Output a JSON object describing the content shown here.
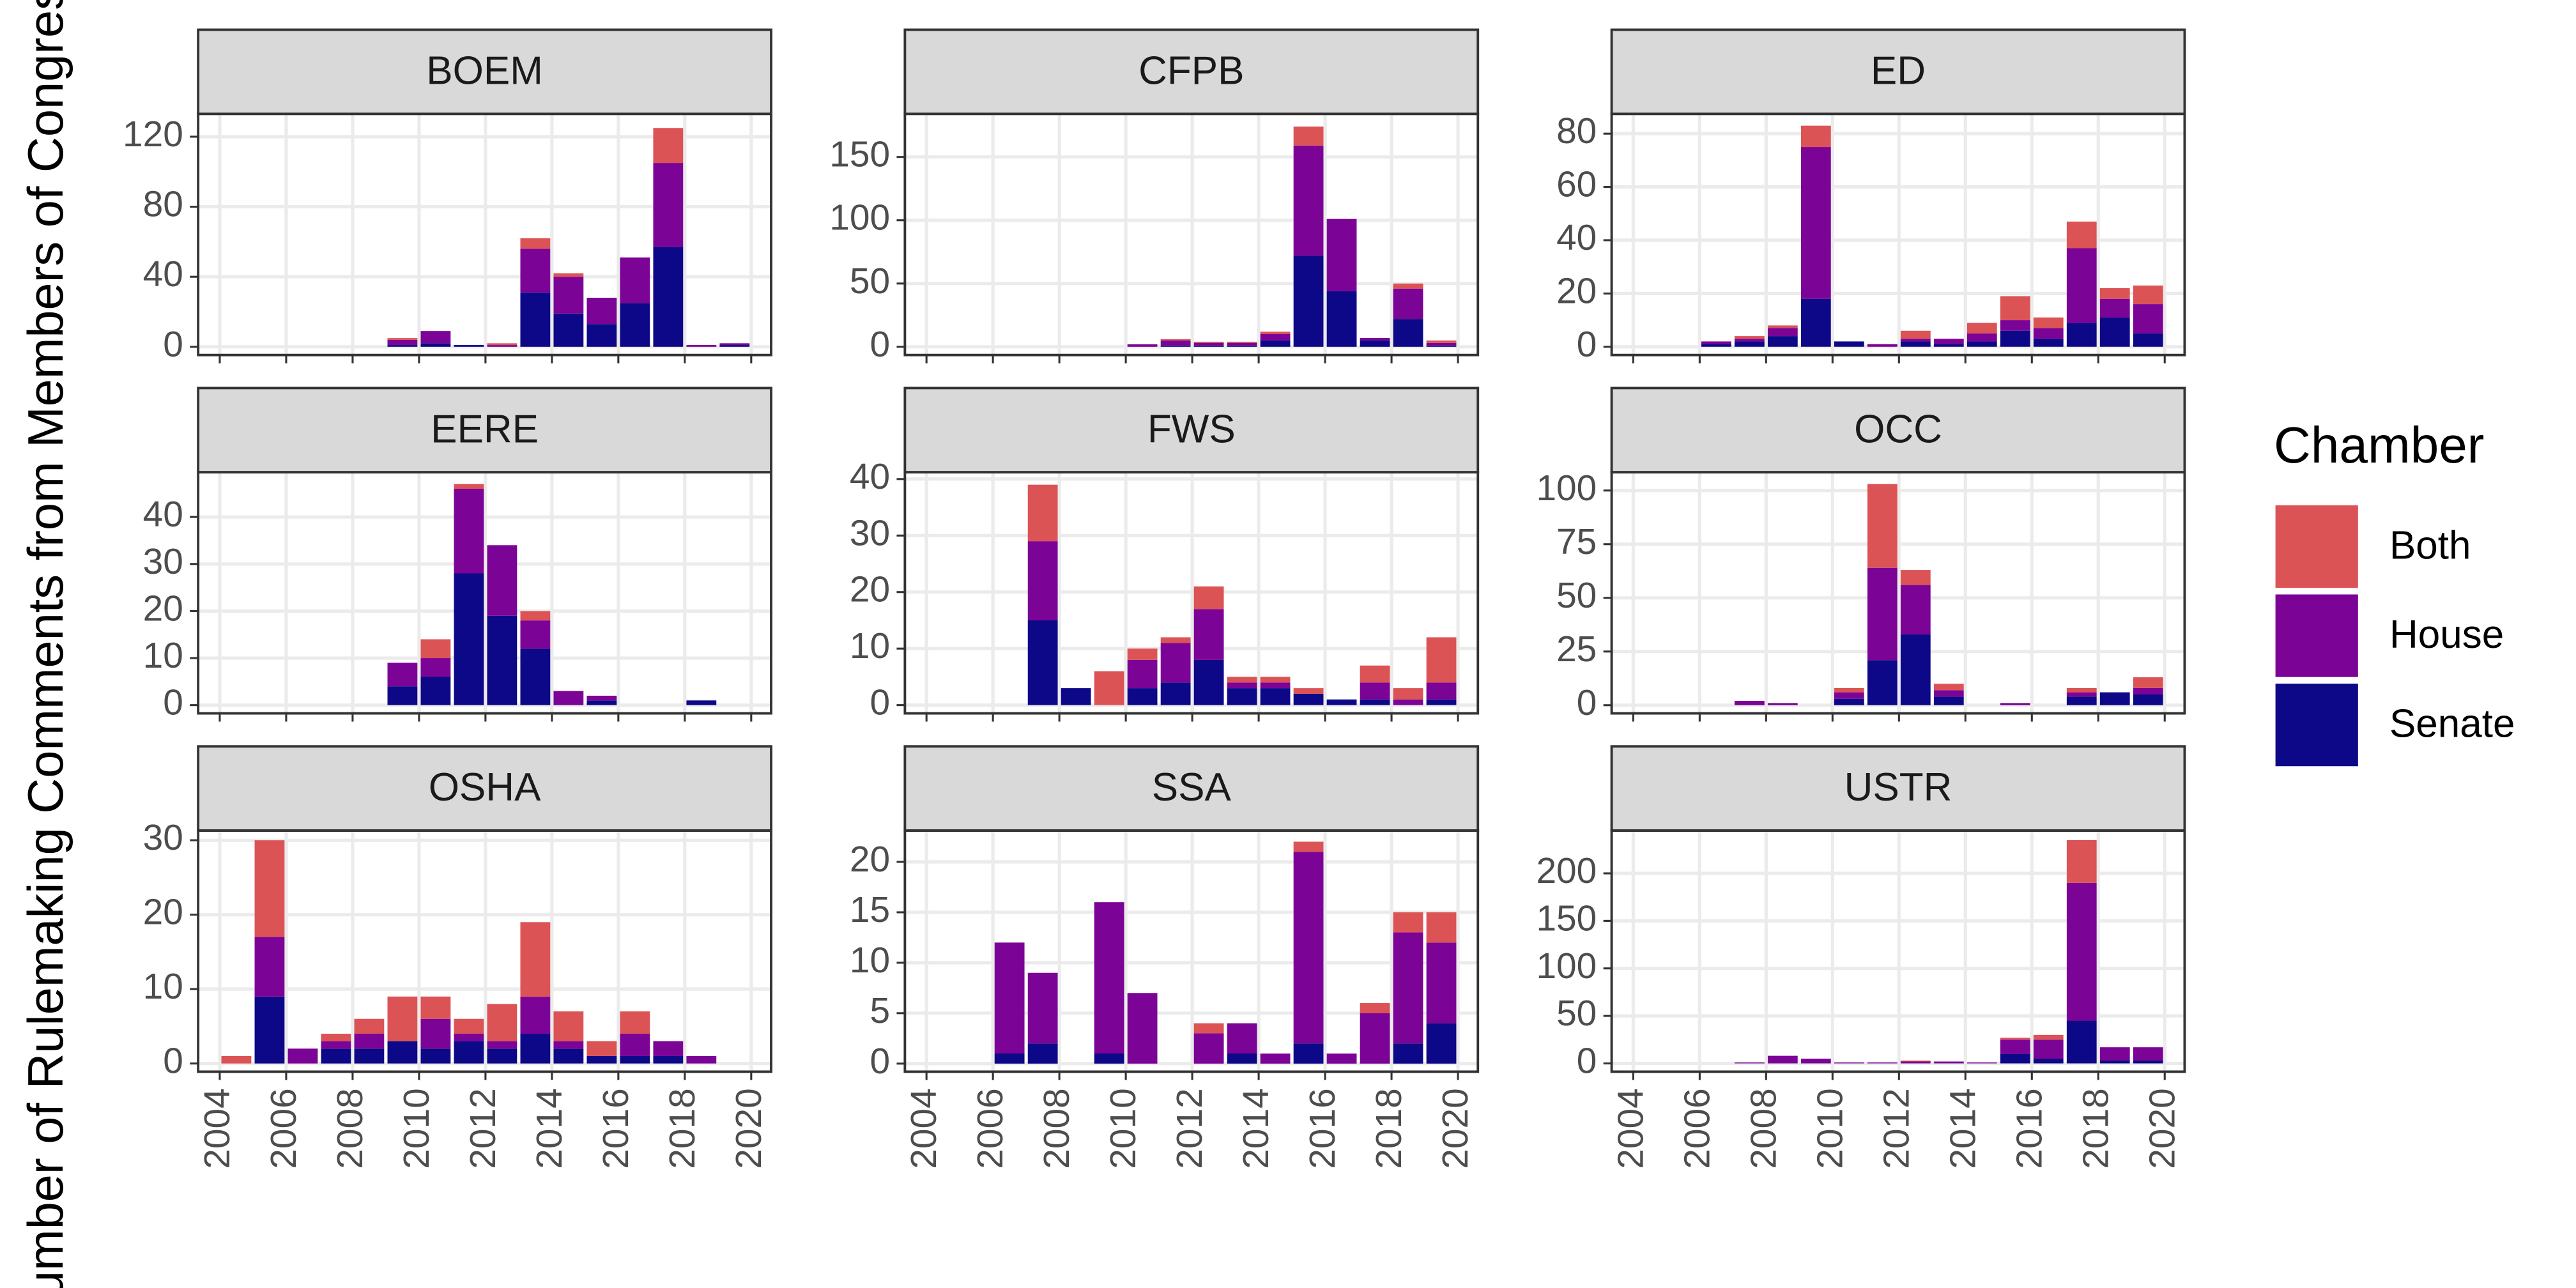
{
  "y_label": "Number of Rulemaking Comments from Members of Congress",
  "legend": {
    "title": "Chamber",
    "position": "right"
  },
  "chart_data": [
    {
      "type": "bar",
      "stacked": true,
      "title": "BOEM",
      "grid": true,
      "x": [
        2009,
        2010,
        2011,
        2012,
        2013,
        2014,
        2015,
        2016,
        2017,
        2018,
        2019
      ],
      "xlim": [
        2003.35,
        2020.6
      ],
      "xticks": [
        2004,
        2006,
        2008,
        2010,
        2012,
        2014,
        2016,
        2018,
        2020
      ],
      "ylim": [
        -4.7,
        133
      ],
      "yticks": [
        0,
        40,
        80,
        120
      ],
      "series": [
        {
          "name": "Senate",
          "color": "#0d0887",
          "values": [
            1,
            2,
            1,
            0,
            31,
            19,
            13,
            25,
            57,
            0,
            1
          ]
        },
        {
          "name": "House",
          "color": "#7b0396",
          "values": [
            3,
            7,
            0,
            1,
            25,
            21,
            15,
            26,
            48,
            1,
            1
          ]
        },
        {
          "name": "Both",
          "color": "#dc5356",
          "values": [
            1,
            0,
            0,
            1,
            6,
            2,
            0,
            0,
            20,
            0,
            0
          ]
        }
      ]
    },
    {
      "type": "bar",
      "stacked": true,
      "title": "CFPB",
      "grid": true,
      "x": [
        2010,
        2011,
        2012,
        2013,
        2014,
        2015,
        2016,
        2017,
        2018,
        2019
      ],
      "xlim": [
        2003.35,
        2020.6
      ],
      "xticks": [
        2004,
        2006,
        2008,
        2010,
        2012,
        2014,
        2016,
        2018,
        2020
      ],
      "ylim": [
        -6.5,
        184
      ],
      "yticks": [
        0,
        50,
        100,
        150
      ],
      "series": [
        {
          "name": "Senate",
          "color": "#0d0887",
          "values": [
            0,
            1,
            1,
            1,
            5,
            72,
            44,
            5,
            22,
            1
          ]
        },
        {
          "name": "House",
          "color": "#7b0396",
          "values": [
            2,
            4,
            2,
            2,
            5,
            87,
            57,
            2,
            24,
            2
          ]
        },
        {
          "name": "Both",
          "color": "#dc5356",
          "values": [
            0,
            1,
            1,
            1,
            2,
            15,
            0,
            0,
            4,
            2
          ]
        }
      ]
    },
    {
      "type": "bar",
      "stacked": true,
      "title": "ED",
      "grid": true,
      "x": [
        2006,
        2007,
        2008,
        2009,
        2010,
        2011,
        2012,
        2013,
        2014,
        2015,
        2016,
        2017,
        2018,
        2019
      ],
      "xlim": [
        2003.35,
        2020.6
      ],
      "xticks": [
        2004,
        2006,
        2008,
        2010,
        2012,
        2014,
        2016,
        2018,
        2020
      ],
      "ylim": [
        -3.1,
        87.4
      ],
      "yticks": [
        0,
        20,
        40,
        60,
        80
      ],
      "series": [
        {
          "name": "Senate",
          "color": "#0d0887",
          "values": [
            1,
            2,
            4,
            18,
            2,
            0,
            2,
            1,
            2,
            6,
            3,
            9,
            11,
            5
          ]
        },
        {
          "name": "House",
          "color": "#7b0396",
          "values": [
            1,
            1,
            3,
            57,
            0,
            1,
            1,
            2,
            3,
            4,
            4,
            28,
            7,
            11
          ]
        },
        {
          "name": "Both",
          "color": "#dc5356",
          "values": [
            0,
            1,
            1,
            8,
            0,
            0,
            3,
            0,
            4,
            9,
            4,
            10,
            4,
            7
          ]
        }
      ]
    },
    {
      "type": "bar",
      "stacked": true,
      "title": "EERE",
      "grid": true,
      "x": [
        2009,
        2010,
        2011,
        2012,
        2013,
        2014,
        2015,
        2018
      ],
      "xlim": [
        2003.35,
        2020.6
      ],
      "xticks": [
        2004,
        2006,
        2008,
        2010,
        2012,
        2014,
        2016,
        2018,
        2020
      ],
      "ylim": [
        -1.75,
        49.5
      ],
      "yticks": [
        0,
        10,
        20,
        30,
        40
      ],
      "series": [
        {
          "name": "Senate",
          "color": "#0d0887",
          "values": [
            4,
            6,
            28,
            19,
            12,
            0,
            1,
            1
          ]
        },
        {
          "name": "House",
          "color": "#7b0396",
          "values": [
            5,
            4,
            18,
            15,
            6,
            3,
            1,
            0
          ]
        },
        {
          "name": "Both",
          "color": "#dc5356",
          "values": [
            0,
            4,
            1,
            0,
            2,
            0,
            0,
            0
          ]
        }
      ]
    },
    {
      "type": "bar",
      "stacked": true,
      "title": "FWS",
      "grid": true,
      "x": [
        2007,
        2008,
        2009,
        2010,
        2011,
        2012,
        2013,
        2014,
        2015,
        2016,
        2017,
        2018,
        2019
      ],
      "xlim": [
        2003.35,
        2020.6
      ],
      "xticks": [
        2004,
        2006,
        2008,
        2010,
        2012,
        2014,
        2016,
        2018,
        2020
      ],
      "ylim": [
        -1.46,
        41.2
      ],
      "yticks": [
        0,
        10,
        20,
        30,
        40
      ],
      "series": [
        {
          "name": "Senate",
          "color": "#0d0887",
          "values": [
            15,
            3,
            0,
            3,
            4,
            8,
            3,
            3,
            2,
            1,
            1,
            0,
            1
          ]
        },
        {
          "name": "House",
          "color": "#7b0396",
          "values": [
            14,
            0,
            0,
            5,
            7,
            9,
            1,
            1,
            0,
            0,
            3,
            1,
            3
          ]
        },
        {
          "name": "Both",
          "color": "#dc5356",
          "values": [
            10,
            0,
            6,
            2,
            1,
            4,
            1,
            1,
            1,
            0,
            3,
            2,
            8
          ]
        }
      ]
    },
    {
      "type": "bar",
      "stacked": true,
      "title": "OCC",
      "grid": true,
      "x": [
        2007,
        2008,
        2010,
        2011,
        2012,
        2013,
        2015,
        2017,
        2018,
        2019
      ],
      "xlim": [
        2003.35,
        2020.6
      ],
      "xticks": [
        2004,
        2006,
        2008,
        2010,
        2012,
        2014,
        2016,
        2018,
        2020
      ],
      "ylim": [
        -3.8,
        108.5
      ],
      "yticks": [
        0,
        25,
        50,
        75,
        100
      ],
      "series": [
        {
          "name": "Senate",
          "color": "#0d0887",
          "values": [
            0,
            0,
            3,
            21,
            33,
            4,
            0,
            4,
            6,
            5
          ]
        },
        {
          "name": "House",
          "color": "#7b0396",
          "values": [
            2,
            1,
            3,
            43,
            23,
            3,
            1,
            2,
            0,
            3
          ]
        },
        {
          "name": "Both",
          "color": "#dc5356",
          "values": [
            0,
            0,
            2,
            39,
            7,
            3,
            0,
            2,
            0,
            5
          ]
        }
      ]
    },
    {
      "type": "bar",
      "stacked": true,
      "title": "OSHA",
      "grid": true,
      "x": [
        2004,
        2005,
        2006,
        2007,
        2008,
        2009,
        2010,
        2011,
        2012,
        2013,
        2014,
        2015,
        2016,
        2017,
        2018
      ],
      "xlim": [
        2003.35,
        2020.6
      ],
      "xticks": [
        2004,
        2006,
        2008,
        2010,
        2012,
        2014,
        2016,
        2018,
        2020
      ],
      "ylim": [
        -1.1,
        31.3
      ],
      "yticks": [
        0,
        10,
        20,
        30
      ],
      "series": [
        {
          "name": "Senate",
          "color": "#0d0887",
          "values": [
            0,
            9,
            0,
            2,
            2,
            3,
            2,
            3,
            2,
            4,
            2,
            1,
            1,
            1,
            0
          ]
        },
        {
          "name": "House",
          "color": "#7b0396",
          "values": [
            0,
            8,
            2,
            1,
            2,
            0,
            4,
            1,
            1,
            5,
            1,
            0,
            3,
            2,
            1
          ]
        },
        {
          "name": "Both",
          "color": "#dc5356",
          "values": [
            1,
            13,
            0,
            1,
            2,
            6,
            3,
            2,
            5,
            10,
            4,
            2,
            3,
            0,
            0
          ]
        }
      ]
    },
    {
      "type": "bar",
      "stacked": true,
      "title": "SSA",
      "grid": true,
      "x": [
        2006,
        2007,
        2009,
        2010,
        2012,
        2013,
        2014,
        2015,
        2016,
        2017,
        2018,
        2019
      ],
      "xlim": [
        2003.35,
        2020.6
      ],
      "xticks": [
        2004,
        2006,
        2008,
        2010,
        2012,
        2014,
        2016,
        2018,
        2020
      ],
      "ylim": [
        -0.8,
        23.1
      ],
      "yticks": [
        0,
        5,
        10,
        15,
        20
      ],
      "series": [
        {
          "name": "Senate",
          "color": "#0d0887",
          "values": [
            1,
            2,
            1,
            0,
            0,
            1,
            0,
            2,
            0,
            0,
            2,
            4
          ]
        },
        {
          "name": "House",
          "color": "#7b0396",
          "values": [
            11,
            7,
            15,
            7,
            3,
            3,
            1,
            19,
            1,
            5,
            11,
            8
          ]
        },
        {
          "name": "Both",
          "color": "#dc5356",
          "values": [
            0,
            0,
            0,
            0,
            1,
            0,
            0,
            1,
            0,
            1,
            2,
            3
          ]
        }
      ]
    },
    {
      "type": "bar",
      "stacked": true,
      "title": "USTR",
      "grid": true,
      "x": [
        2007,
        2008,
        2009,
        2010,
        2011,
        2012,
        2013,
        2014,
        2015,
        2016,
        2017,
        2018,
        2019
      ],
      "xlim": [
        2003.35,
        2020.6
      ],
      "xticks": [
        2004,
        2006,
        2008,
        2010,
        2012,
        2014,
        2016,
        2018,
        2020
      ],
      "ylim": [
        -8.7,
        245
      ],
      "yticks": [
        0,
        50,
        100,
        150,
        200
      ],
      "series": [
        {
          "name": "Senate",
          "color": "#0d0887",
          "values": [
            0,
            0,
            0,
            0,
            0,
            0,
            0,
            0,
            10,
            5,
            45,
            3,
            3
          ]
        },
        {
          "name": "House",
          "color": "#7b0396",
          "values": [
            1,
            8,
            5,
            1,
            1,
            2,
            2,
            1,
            15,
            20,
            145,
            14,
            14
          ]
        },
        {
          "name": "Both",
          "color": "#dc5356",
          "values": [
            0,
            0,
            0,
            0,
            0,
            1,
            0,
            0,
            2,
            5,
            45,
            0,
            0
          ]
        }
      ]
    }
  ]
}
